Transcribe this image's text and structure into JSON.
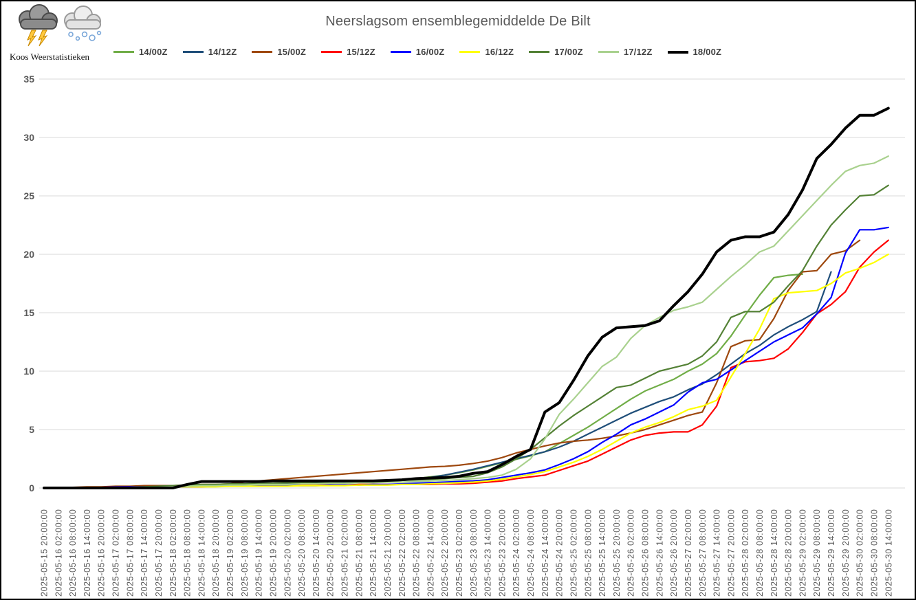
{
  "logo": {
    "text": "Koos Weerstatistieken"
  },
  "title": "Neerslagsom ensemblegemiddelde De Bilt",
  "colors": {
    "grid": "#d9d9d9",
    "axis_text": "#595959",
    "title_text": "#595959"
  },
  "chart_data": {
    "type": "line",
    "title": "Neerslagsom ensemblegemiddelde De Bilt",
    "xlabel": "",
    "ylabel": "",
    "ylim": [
      0,
      35
    ],
    "yticks": [
      0,
      5,
      10,
      15,
      20,
      25,
      30,
      35
    ],
    "grid": "horizontal",
    "legend_position": "top",
    "x_labels": [
      "2025-05-15 20:00:00",
      "2025-05-16 02:00:00",
      "2025-05-16 08:00:00",
      "2025-05-16 14:00:00",
      "2025-05-16 20:00:00",
      "2025-05-17 02:00:00",
      "2025-05-17 08:00:00",
      "2025-05-17 14:00:00",
      "2025-05-17 20:00:00",
      "2025-05-18 02:00:00",
      "2025-05-18 08:00:00",
      "2025-05-18 14:00:00",
      "2025-05-18 20:00:00",
      "2025-05-19 02:00:00",
      "2025-05-19 08:00:00",
      "2025-05-19 14:00:00",
      "2025-05-19 20:00:00",
      "2025-05-20 02:00:00",
      "2025-05-20 08:00:00",
      "2025-05-20 14:00:00",
      "2025-05-20 20:00:00",
      "2025-05-21 02:00:00",
      "2025-05-21 08:00:00",
      "2025-05-21 14:00:00",
      "2025-05-21 20:00:00",
      "2025-05-22 02:00:00",
      "2025-05-22 08:00:00",
      "2025-05-22 14:00:00",
      "2025-05-22 20:00:00",
      "2025-05-23 02:00:00",
      "2025-05-23 08:00:00",
      "2025-05-23 14:00:00",
      "2025-05-23 20:00:00",
      "2025-05-24 02:00:00",
      "2025-05-24 08:00:00",
      "2025-05-24 14:00:00",
      "2025-05-24 20:00:00",
      "2025-05-25 02:00:00",
      "2025-05-25 08:00:00",
      "2025-05-25 14:00:00",
      "2025-05-25 20:00:00",
      "2025-05-26 02:00:00",
      "2025-05-26 08:00:00",
      "2025-05-26 14:00:00",
      "2025-05-26 20:00:00",
      "2025-05-27 02:00:00",
      "2025-05-27 08:00:00",
      "2025-05-27 14:00:00",
      "2025-05-27 20:00:00",
      "2025-05-28 02:00:00",
      "2025-05-28 08:00:00",
      "2025-05-28 14:00:00",
      "2025-05-28 20:00:00",
      "2025-05-29 02:00:00",
      "2025-05-29 08:00:00",
      "2025-05-29 14:00:00",
      "2025-05-29 20:00:00",
      "2025-05-30 02:00:00",
      "2025-05-30 08:00:00",
      "2025-05-30 14:00:00"
    ],
    "series": [
      {
        "name": "14/00Z",
        "color": "#70AD47",
        "width": 2.2,
        "values": [
          0,
          0,
          0.02,
          0.05,
          0.07,
          0.1,
          0.1,
          0.12,
          0.14,
          0.15,
          0.15,
          0.2,
          0.25,
          0.3,
          0.3,
          0.35,
          0.35,
          0.4,
          0.4,
          0.45,
          0.45,
          0.5,
          0.55,
          0.6,
          0.65,
          0.7,
          0.8,
          0.95,
          1.1,
          1.3,
          1.55,
          1.85,
          2.15,
          2.45,
          2.75,
          3.1,
          3.8,
          4.5,
          5.2,
          6.0,
          6.8,
          7.6,
          8.3,
          8.8,
          9.3,
          10.0,
          10.6,
          11.5,
          13.0,
          14.8,
          16.5,
          18.0,
          18.2,
          18.3,
          null,
          null,
          null,
          null,
          null,
          null
        ]
      },
      {
        "name": "14/12Z",
        "color": "#1F4E79",
        "width": 2.2,
        "values": [
          0,
          0,
          0.02,
          0.04,
          0.06,
          0.08,
          0.1,
          0.1,
          0.12,
          0.14,
          0.15,
          0.2,
          0.2,
          0.25,
          0.25,
          0.3,
          0.3,
          0.35,
          0.35,
          0.4,
          0.4,
          0.45,
          0.5,
          0.55,
          0.6,
          0.65,
          0.75,
          0.9,
          1.1,
          1.35,
          1.6,
          1.9,
          2.2,
          2.5,
          2.8,
          3.1,
          3.5,
          4.0,
          4.6,
          5.2,
          5.8,
          6.4,
          6.9,
          7.4,
          7.8,
          8.4,
          8.9,
          9.7,
          10.6,
          11.5,
          12.2,
          13.1,
          13.8,
          14.4,
          15.1,
          18.5,
          null,
          null,
          null,
          null
        ]
      },
      {
        "name": "15/00Z",
        "color": "#9E480E",
        "width": 2.2,
        "values": [
          0,
          0,
          0.05,
          0.1,
          0.1,
          0.15,
          0.15,
          0.2,
          0.2,
          0.2,
          0.25,
          0.3,
          0.3,
          0.35,
          0.5,
          0.6,
          0.7,
          0.8,
          0.9,
          1.0,
          1.1,
          1.2,
          1.3,
          1.4,
          1.5,
          1.6,
          1.7,
          1.8,
          1.85,
          1.95,
          2.1,
          2.3,
          2.6,
          3.0,
          3.3,
          3.6,
          3.85,
          4.0,
          4.1,
          4.25,
          4.45,
          4.7,
          5.0,
          5.4,
          5.8,
          6.2,
          6.5,
          9.0,
          12.1,
          12.6,
          12.7,
          14.5,
          16.9,
          18.5,
          18.6,
          20.0,
          20.3,
          21.2,
          null,
          null
        ]
      },
      {
        "name": "15/12Z",
        "color": "#FF0000",
        "width": 2.2,
        "values": [
          0,
          0,
          0.02,
          0.05,
          0.05,
          0.08,
          0.1,
          0.1,
          0.1,
          0.1,
          0.1,
          0.1,
          0.15,
          0.15,
          0.15,
          0.2,
          0.2,
          0.2,
          0.25,
          0.25,
          0.25,
          0.25,
          0.3,
          0.3,
          0.3,
          0.3,
          0.3,
          0.3,
          0.35,
          0.35,
          0.4,
          0.5,
          0.6,
          0.8,
          0.95,
          1.1,
          1.5,
          1.9,
          2.3,
          2.9,
          3.5,
          4.1,
          4.5,
          4.7,
          4.8,
          4.8,
          5.4,
          7.0,
          10.3,
          10.8,
          10.9,
          11.1,
          11.9,
          13.3,
          14.9,
          15.7,
          16.8,
          18.9,
          20.2,
          21.2
        ]
      },
      {
        "name": "16/00Z",
        "color": "#0000FF",
        "width": 2.2,
        "values": [
          0,
          0,
          0.02,
          0.05,
          0.05,
          0.08,
          0.1,
          0.1,
          0.1,
          0.1,
          0.1,
          0.15,
          0.15,
          0.15,
          0.15,
          0.2,
          0.2,
          0.2,
          0.2,
          0.2,
          0.25,
          0.25,
          0.25,
          0.3,
          0.3,
          0.35,
          0.4,
          0.45,
          0.5,
          0.55,
          0.6,
          0.7,
          0.9,
          1.1,
          1.3,
          1.55,
          2.0,
          2.5,
          3.1,
          3.9,
          4.6,
          5.4,
          5.9,
          6.5,
          7.1,
          8.2,
          9.0,
          9.3,
          10.1,
          10.9,
          11.7,
          12.5,
          13.1,
          13.7,
          14.9,
          16.3,
          20.1,
          22.1,
          22.1,
          22.3
        ]
      },
      {
        "name": "16/12Z",
        "color": "#FFFF00",
        "width": 2.2,
        "values": [
          0,
          0,
          0,
          0,
          0.02,
          0.05,
          0.05,
          0.08,
          0.1,
          0.1,
          0.1,
          0.1,
          0.1,
          0.15,
          0.15,
          0.15,
          0.15,
          0.15,
          0.2,
          0.2,
          0.2,
          0.2,
          0.25,
          0.25,
          0.25,
          0.3,
          0.3,
          0.35,
          0.4,
          0.45,
          0.5,
          0.6,
          0.75,
          0.95,
          1.15,
          1.4,
          1.8,
          2.2,
          2.7,
          3.3,
          4.0,
          4.7,
          5.2,
          5.6,
          6.1,
          6.7,
          7.0,
          7.5,
          9.5,
          11.5,
          13.6,
          16.2,
          16.7,
          16.8,
          16.9,
          17.5,
          18.4,
          18.8,
          19.3,
          20.0
        ]
      },
      {
        "name": "17/00Z",
        "color": "#538135",
        "width": 2.2,
        "values": [
          0,
          0,
          0,
          0,
          0,
          0,
          0.05,
          0.1,
          0.15,
          0.2,
          0.25,
          0.3,
          0.3,
          0.35,
          0.35,
          0.4,
          0.4,
          0.45,
          0.45,
          0.5,
          0.5,
          0.55,
          0.55,
          0.6,
          0.6,
          0.65,
          0.7,
          0.75,
          0.8,
          0.9,
          1.0,
          1.3,
          1.8,
          2.5,
          3.3,
          4.3,
          5.3,
          6.2,
          7.0,
          7.8,
          8.6,
          8.8,
          9.4,
          10.0,
          10.3,
          10.6,
          11.3,
          12.5,
          14.6,
          15.1,
          15.1,
          15.9,
          17.3,
          18.6,
          20.7,
          22.5,
          23.8,
          25.0,
          25.1,
          25.9
        ]
      },
      {
        "name": "17/12Z",
        "color": "#A9D18E",
        "width": 2.2,
        "values": [
          0,
          0,
          0,
          0,
          0,
          0,
          0,
          0,
          0.05,
          0.1,
          0.15,
          0.2,
          0.2,
          0.25,
          0.25,
          0.3,
          0.3,
          0.3,
          0.35,
          0.35,
          0.4,
          0.4,
          0.45,
          0.45,
          0.5,
          0.5,
          0.55,
          0.6,
          0.65,
          0.7,
          0.8,
          0.9,
          1.1,
          1.6,
          2.5,
          4.2,
          6.3,
          7.6,
          9.0,
          10.4,
          11.2,
          12.8,
          13.9,
          14.6,
          15.2,
          15.5,
          15.9,
          17.0,
          18.1,
          19.1,
          20.2,
          20.7,
          22.0,
          23.3,
          24.6,
          25.9,
          27.1,
          27.6,
          27.8,
          28.4
        ]
      },
      {
        "name": "18/00Z",
        "color": "#000000",
        "width": 4,
        "values": [
          0,
          0,
          0,
          0,
          0,
          0,
          0,
          0,
          0,
          0,
          0.3,
          0.55,
          0.55,
          0.55,
          0.55,
          0.55,
          0.6,
          0.6,
          0.6,
          0.6,
          0.6,
          0.6,
          0.6,
          0.6,
          0.65,
          0.7,
          0.8,
          0.85,
          0.9,
          1.0,
          1.25,
          1.4,
          2.0,
          2.7,
          3.3,
          6.5,
          7.3,
          9.2,
          11.3,
          12.9,
          13.7,
          13.8,
          13.9,
          14.3,
          15.6,
          16.8,
          18.3,
          20.2,
          21.2,
          21.5,
          21.5,
          21.9,
          23.4,
          25.5,
          28.2,
          29.4,
          30.8,
          31.9,
          31.9,
          32.5
        ]
      }
    ]
  }
}
